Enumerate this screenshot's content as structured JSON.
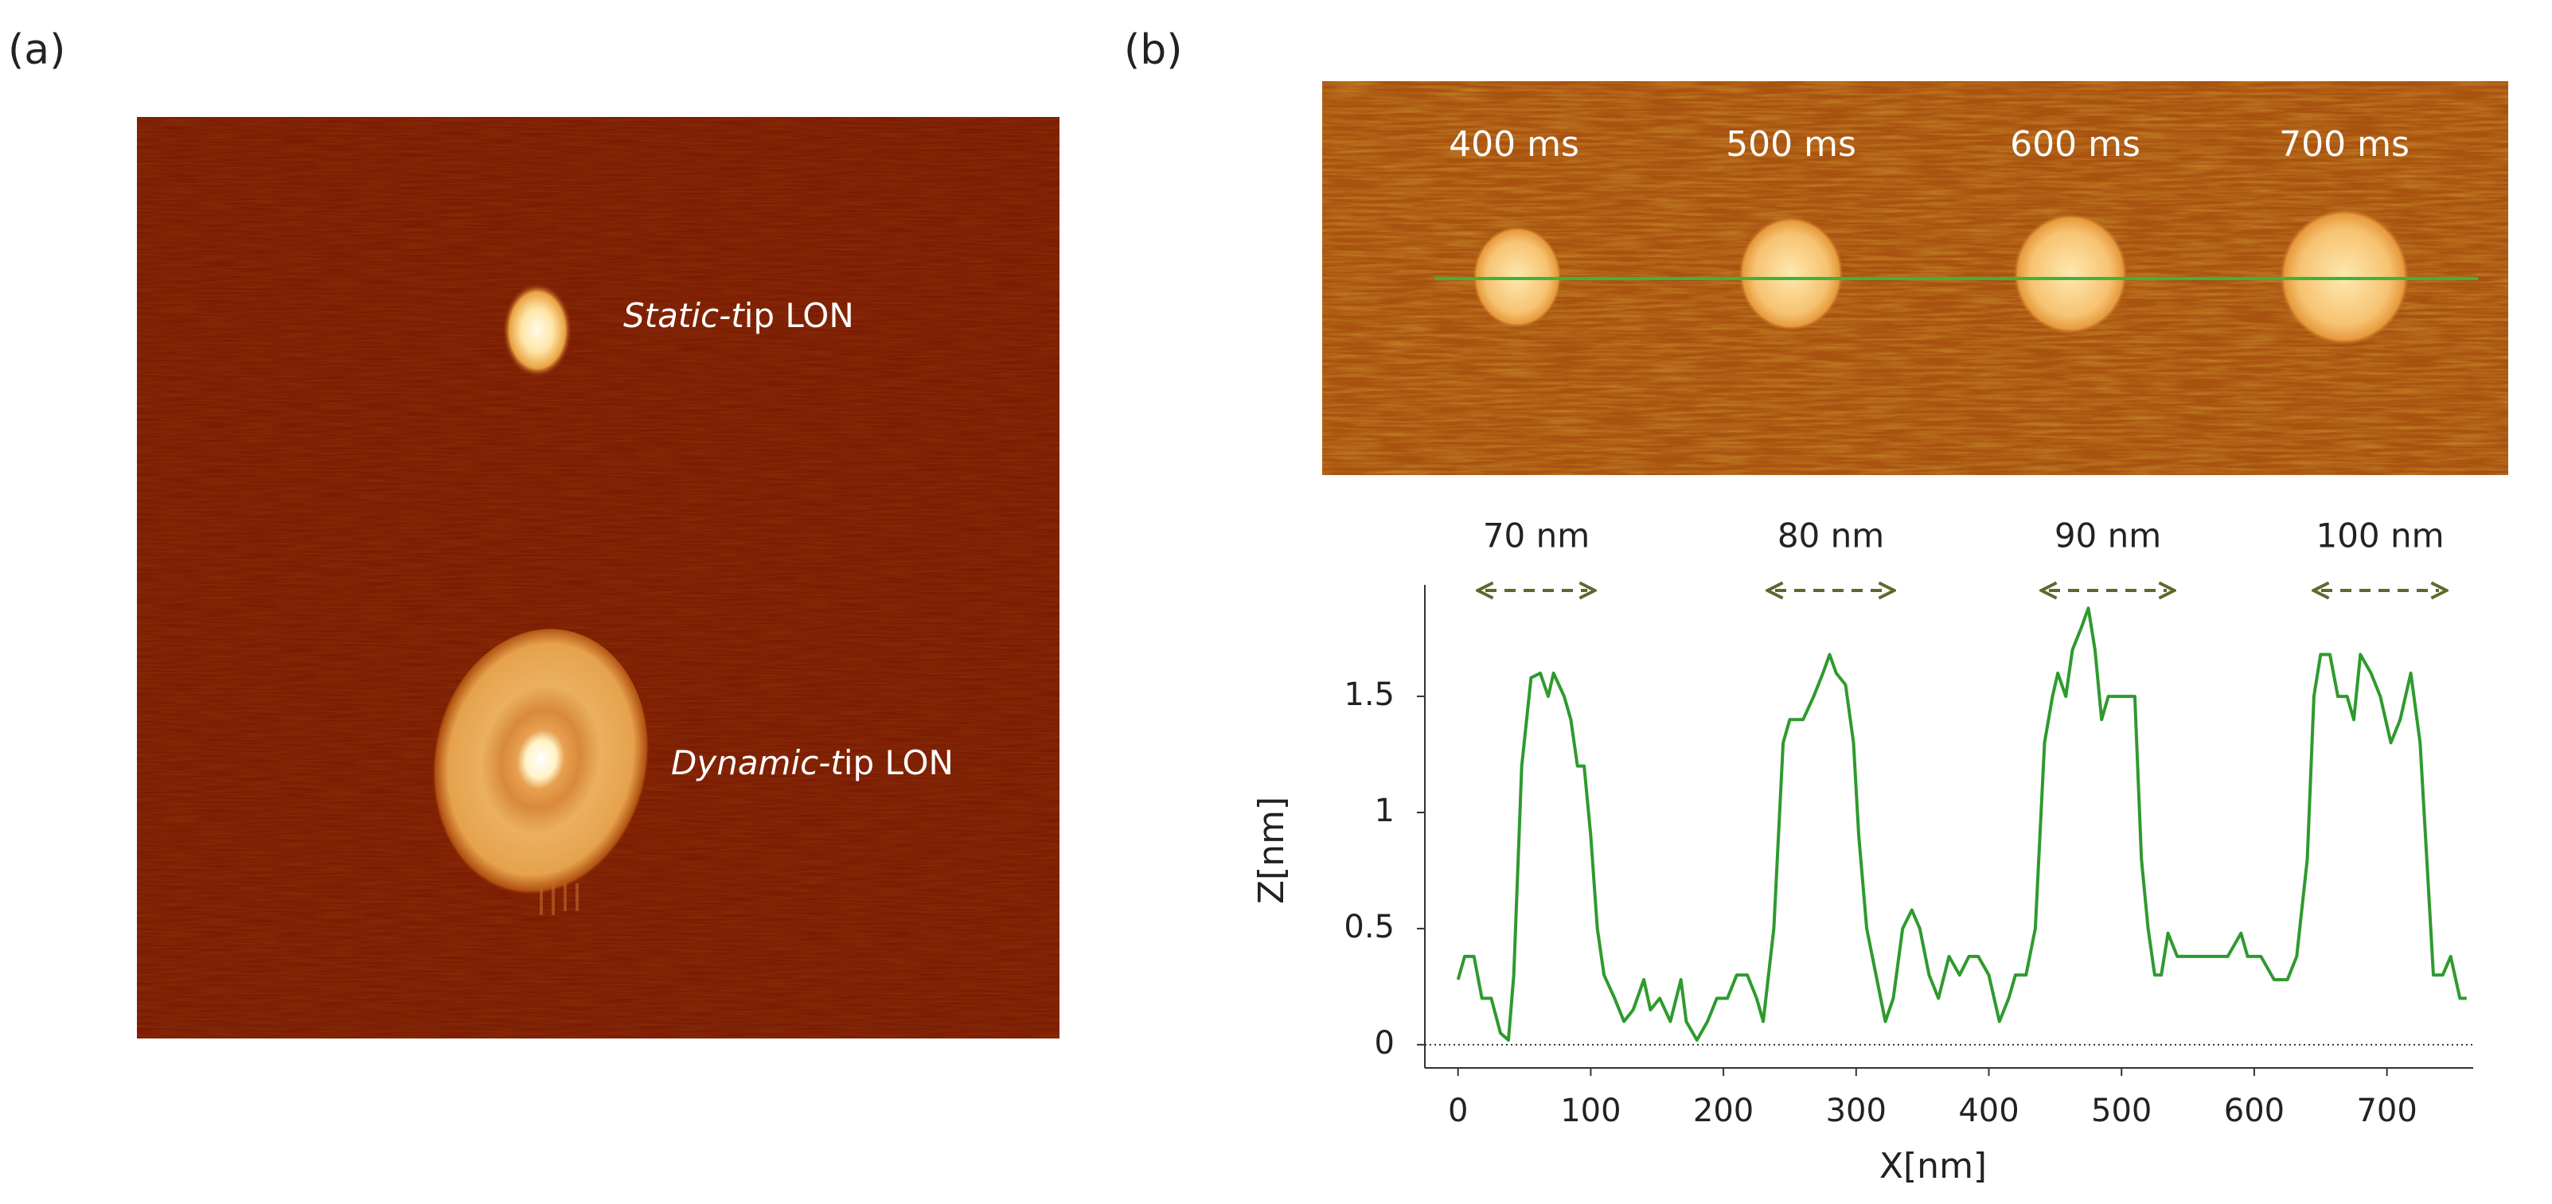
{
  "panel_a": {
    "label": "(a)",
    "annotations": [
      {
        "italic": "Static-t",
        "normal": "ip LON"
      },
      {
        "italic": "Dynamic-t",
        "normal": "ip LON"
      }
    ]
  },
  "panel_b": {
    "label": "(b)",
    "time_labels": [
      "400 ms",
      "500 ms",
      "600 ms",
      "700 ms"
    ]
  },
  "chart_data": {
    "type": "line",
    "xlabel": "X[nm]",
    "ylabel": "Z[nm]",
    "annotations": [
      "70 nm",
      "80 nm",
      "90 nm",
      "100 nm"
    ],
    "x": [
      0,
      5,
      12,
      18,
      25,
      32,
      38,
      42,
      48,
      55,
      62,
      68,
      72,
      80,
      85,
      90,
      95,
      100,
      105,
      110,
      118,
      125,
      132,
      140,
      145,
      152,
      160,
      168,
      172,
      180,
      188,
      195,
      203,
      210,
      218,
      225,
      230,
      238,
      245,
      250,
      260,
      268,
      275,
      280,
      285,
      292,
      298,
      302,
      308,
      315,
      322,
      328,
      335,
      342,
      348,
      355,
      362,
      370,
      378,
      385,
      392,
      400,
      408,
      415,
      420,
      428,
      435,
      442,
      448,
      452,
      458,
      463,
      470,
      475,
      480,
      485,
      490,
      498,
      505,
      510,
      515,
      520,
      525,
      530,
      535,
      542,
      560,
      580,
      590,
      595,
      605,
      615,
      625,
      632,
      640,
      645,
      650,
      657,
      663,
      670,
      675,
      680,
      688,
      695,
      703,
      710,
      718,
      725,
      730,
      735,
      742,
      748,
      755,
      760
    ],
    "series": [
      {
        "color": "#2e9a2e",
        "values": [
          0.28,
          0.38,
          0.38,
          0.2,
          0.2,
          0.05,
          0.02,
          0.3,
          1.2,
          1.58,
          1.6,
          1.5,
          1.6,
          1.5,
          1.4,
          1.2,
          1.2,
          0.9,
          0.5,
          0.3,
          0.2,
          0.1,
          0.15,
          0.28,
          0.15,
          0.2,
          0.1,
          0.28,
          0.1,
          0.02,
          0.1,
          0.2,
          0.2,
          0.3,
          0.3,
          0.2,
          0.1,
          0.5,
          1.3,
          1.4,
          1.4,
          1.5,
          1.6,
          1.68,
          1.6,
          1.55,
          1.3,
          0.9,
          0.5,
          0.3,
          0.1,
          0.2,
          0.5,
          0.58,
          0.5,
          0.3,
          0.2,
          0.38,
          0.3,
          0.38,
          0.38,
          0.3,
          0.1,
          0.2,
          0.3,
          0.3,
          0.5,
          1.3,
          1.5,
          1.6,
          1.5,
          1.7,
          1.8,
          1.88,
          1.7,
          1.4,
          1.5,
          1.5,
          1.5,
          1.5,
          0.8,
          0.5,
          0.3,
          0.3,
          0.48,
          0.38,
          0.38,
          0.38,
          0.48,
          0.38,
          0.38,
          0.28,
          0.28,
          0.38,
          0.8,
          1.5,
          1.68,
          1.68,
          1.5,
          1.5,
          1.4,
          1.68,
          1.6,
          1.5,
          1.3,
          1.4,
          1.6,
          1.3,
          0.8,
          0.3,
          0.3,
          0.38,
          0.2,
          0.2
        ]
      }
    ],
    "xlim": [
      -25,
      765
    ],
    "ylim": [
      -0.1,
      1.98
    ],
    "xticks": [
      0,
      100,
      200,
      300,
      400,
      500,
      600,
      700
    ],
    "yticks": [
      0,
      0.5,
      1,
      1.5
    ]
  }
}
